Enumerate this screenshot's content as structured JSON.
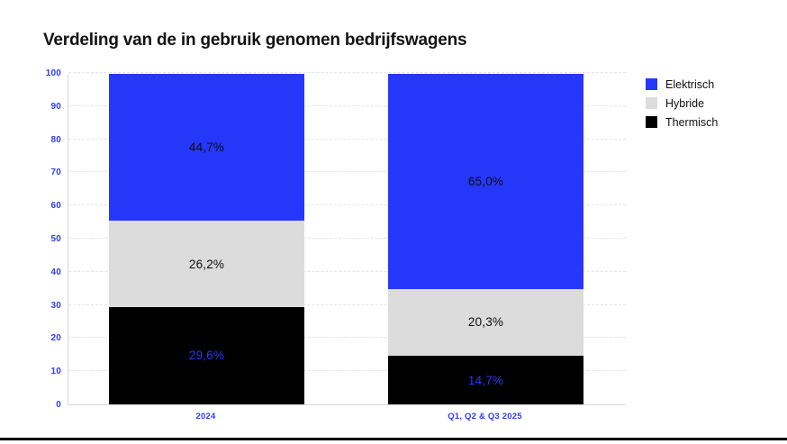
{
  "page": {
    "background": "#ffffff",
    "bottom_rule_color": "#000000"
  },
  "chart_data": {
    "type": "bar",
    "stacked": true,
    "title": "Verdeling van de in gebruik genomen bedrijfswagens",
    "categories": [
      "2024",
      "Q1, Q2 & Q3 2025"
    ],
    "series": [
      {
        "name": "Elektrisch",
        "color": "#2538fa",
        "values": [
          44.7,
          65.0
        ],
        "value_labels": [
          "44,7%",
          "65,0%"
        ],
        "label_color": "#0d0d0d"
      },
      {
        "name": "Hybride",
        "color": "#dcdcdc",
        "values": [
          26.2,
          20.3
        ],
        "value_labels": [
          "26,2%",
          "20,3%"
        ],
        "label_color": "#0d0d0d"
      },
      {
        "name": "Thermisch",
        "color": "#000000",
        "values": [
          29.6,
          14.7
        ],
        "value_labels": [
          "29,6%",
          "14,7%"
        ],
        "label_color": "#2538fa"
      }
    ],
    "xlabel": "",
    "ylabel": "",
    "ylim": [
      0,
      100
    ],
    "yticks": [
      0,
      10,
      20,
      30,
      40,
      50,
      60,
      70,
      80,
      90,
      100
    ],
    "grid": "horizontal-dashed",
    "legend_position": "top-right",
    "tick_label_color": "#2f3ded",
    "axis_line_color": "#d8d8de",
    "gridline_color": "#e2e3ef"
  }
}
